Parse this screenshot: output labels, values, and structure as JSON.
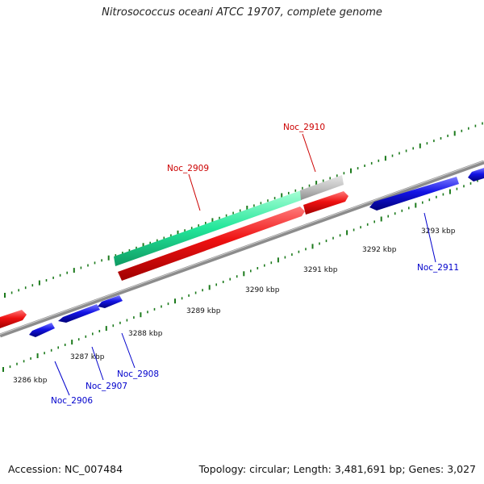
{
  "title": "Nitrosococcus oceani ATCC 19707, complete genome",
  "footer": {
    "accession": "Accession: NC_007484",
    "summary": "Topology: circular; Length: 3,481,691 bp; Genes: 3,027"
  },
  "colors": {
    "forward_gene": "#ee1111",
    "reverse_gene": "#1414e6",
    "rna_gene": "#22e69a",
    "gray_feature": "#c2c2c2",
    "backbone": "#8c8c8c",
    "tick": "#1c7a1c",
    "forward_label": "#cc0000",
    "reverse_label": "#0000cc"
  },
  "kbp_labels": [
    "3286 kbp",
    "3287 kbp",
    "3288 kbp",
    "3289 kbp",
    "3290 kbp",
    "3291 kbp",
    "3292 kbp",
    "3293 kbp"
  ],
  "gene_labels": {
    "noc_2906": "Noc_2906",
    "noc_2907": "Noc_2907",
    "noc_2908": "Noc_2908",
    "noc_2909": "Noc_2909",
    "noc_2910": "Noc_2910",
    "noc_2911": "Noc_2911"
  }
}
